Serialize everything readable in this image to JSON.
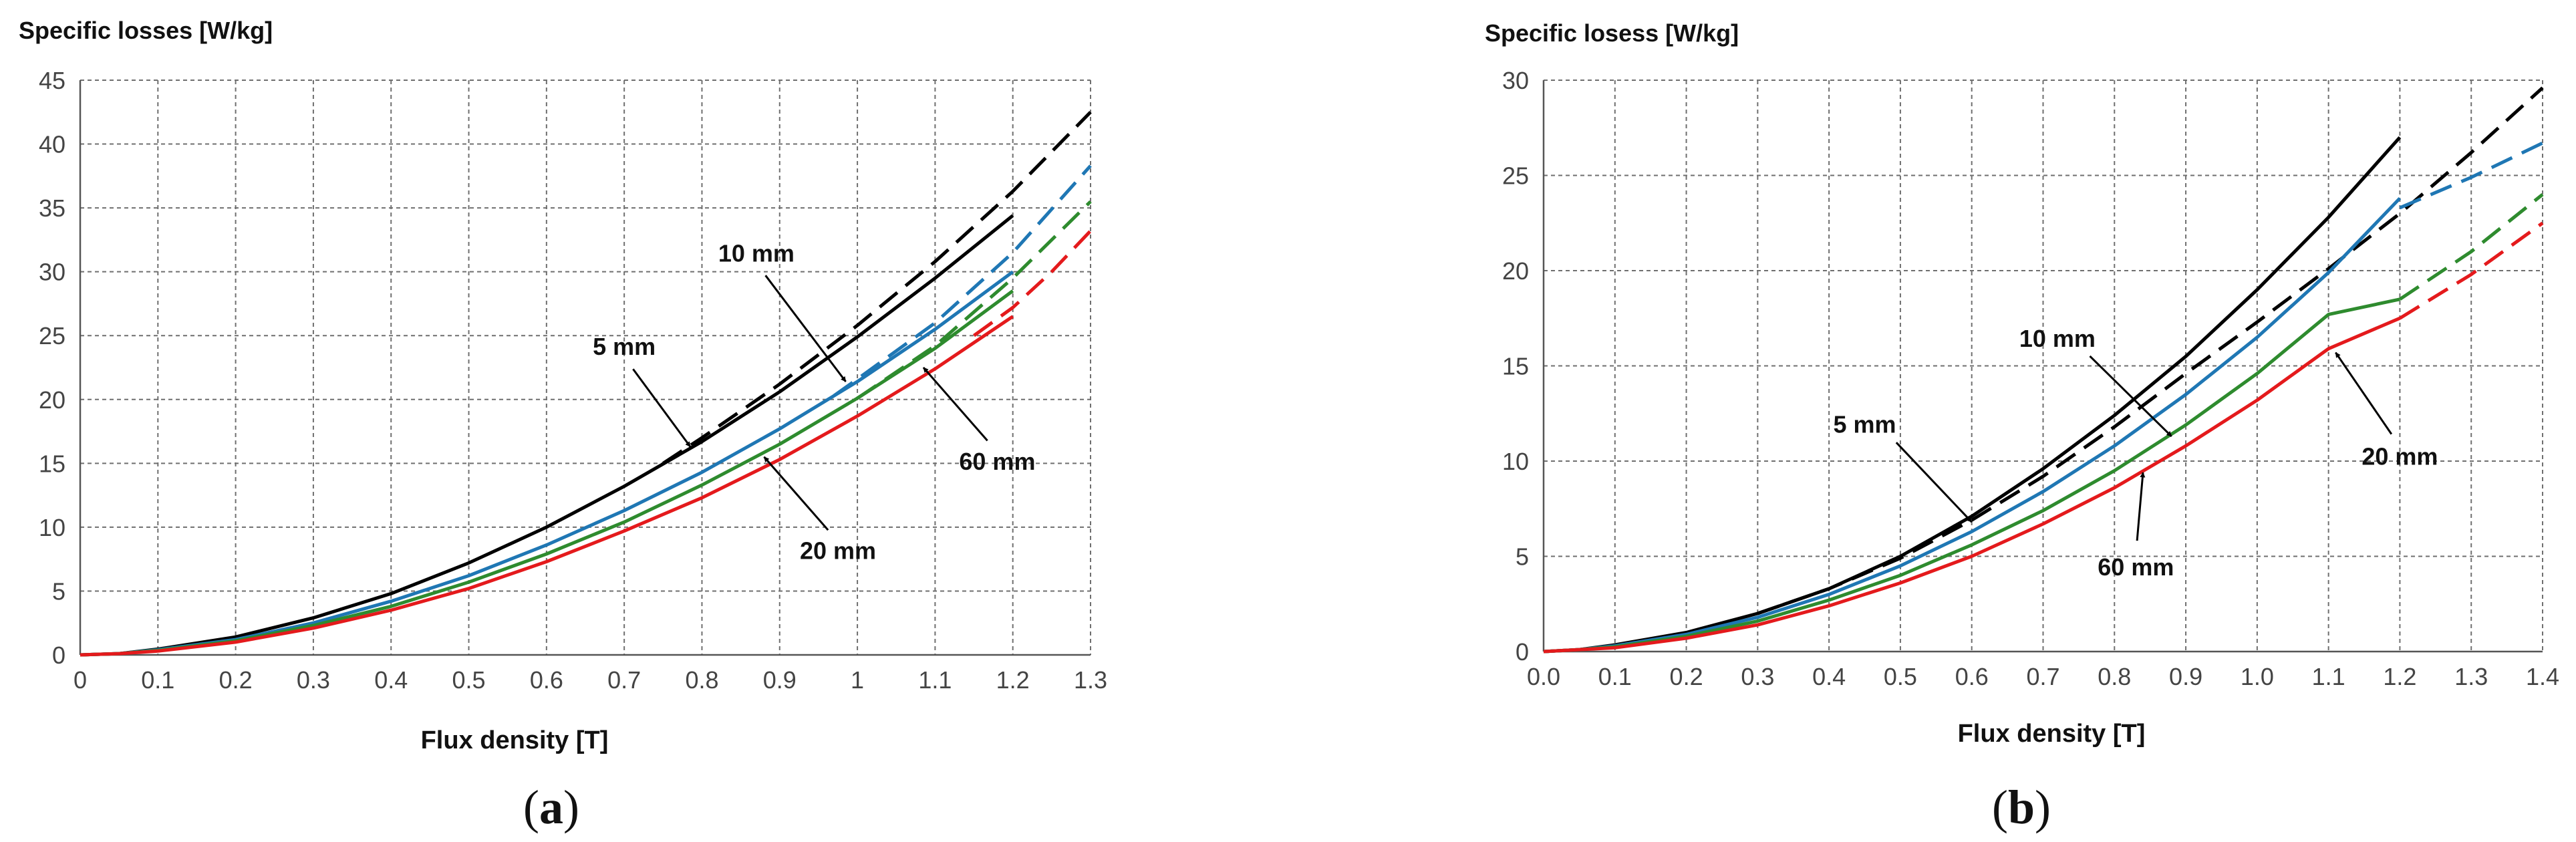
{
  "chart_data": [
    {
      "type": "line",
      "title": "",
      "ylabel": "Specific losses [W/kg]",
      "xlabel": "Flux density  [T]",
      "caption": "(a)",
      "caption_letter": "a",
      "xlim": [
        0,
        1.3
      ],
      "ylim": [
        0,
        45
      ],
      "xticks": [
        0,
        0.1,
        0.2,
        0.3,
        0.4,
        0.5,
        0.6,
        0.7,
        0.8,
        0.9,
        1,
        1.1,
        1.2,
        1.3
      ],
      "xtick_labels": [
        "0",
        "0.1",
        "0.2",
        "0.3",
        "0.4",
        "0.5",
        "0.6",
        "0.7",
        "0.8",
        "0.9",
        "1",
        "1.1",
        "1.2",
        "1.3"
      ],
      "yticks": [
        0,
        5,
        10,
        15,
        20,
        25,
        30,
        35,
        40,
        45
      ],
      "ytick_labels": [
        "0",
        "5",
        "10",
        "15",
        "20",
        "25",
        "30",
        "35",
        "40",
        "45"
      ],
      "grid": true,
      "colors": {
        "5 mm": "#000000",
        "10 mm": "#1f77b4",
        "20 mm": "#2e8b2e",
        "60 mm": "#e41a1c"
      },
      "series": [
        {
          "color": "#000000",
          "style": "solid",
          "x": [
            0,
            0.05,
            0.1,
            0.2,
            0.3,
            0.4,
            0.5,
            0.6,
            0.7,
            0.8,
            0.9,
            1.0,
            1.1,
            1.2
          ],
          "y": [
            0,
            0.1,
            0.45,
            1.4,
            2.9,
            4.8,
            7.2,
            10.0,
            13.2,
            16.7,
            20.6,
            24.9,
            29.5,
            34.4
          ]
        },
        {
          "color": "#000000",
          "style": "dashed",
          "x": [
            0.75,
            0.8,
            0.9,
            1.0,
            1.1,
            1.2,
            1.3
          ],
          "y": [
            15.0,
            17.0,
            21.2,
            25.8,
            30.8,
            36.3,
            42.5
          ]
        },
        {
          "color": "#1f77b4",
          "style": "solid",
          "x": [
            0,
            0.05,
            0.1,
            0.2,
            0.3,
            0.4,
            0.5,
            0.6,
            0.7,
            0.8,
            0.9,
            1.0,
            1.1,
            1.2
          ],
          "y": [
            0,
            0.1,
            0.4,
            1.2,
            2.5,
            4.2,
            6.2,
            8.6,
            11.3,
            14.3,
            17.7,
            21.4,
            25.5,
            30.0
          ]
        },
        {
          "color": "#1f77b4",
          "style": "dashed",
          "x": [
            0.97,
            1.0,
            1.1,
            1.2,
            1.3
          ],
          "y": [
            20.3,
            21.6,
            26.0,
            31.5,
            38.3
          ]
        },
        {
          "color": "#2e8b2e",
          "style": "solid",
          "x": [
            0,
            0.05,
            0.1,
            0.2,
            0.3,
            0.4,
            0.5,
            0.6,
            0.7,
            0.8,
            0.9,
            1.0,
            1.1,
            1.2
          ],
          "y": [
            0,
            0.1,
            0.35,
            1.1,
            2.3,
            3.8,
            5.7,
            7.9,
            10.4,
            13.3,
            16.5,
            20.1,
            24.0,
            28.5
          ]
        },
        {
          "color": "#2e8b2e",
          "style": "dashed",
          "x": [
            1.0,
            1.1,
            1.2,
            1.3
          ],
          "y": [
            20.1,
            24.2,
            29.5,
            35.5
          ]
        },
        {
          "color": "#e41a1c",
          "style": "solid",
          "x": [
            0,
            0.05,
            0.1,
            0.2,
            0.3,
            0.4,
            0.5,
            0.6,
            0.7,
            0.8,
            0.9,
            1.0,
            1.1,
            1.2
          ],
          "y": [
            0,
            0.1,
            0.3,
            1.0,
            2.1,
            3.5,
            5.2,
            7.3,
            9.7,
            12.3,
            15.3,
            18.7,
            22.4,
            26.5
          ]
        },
        {
          "color": "#e41a1c",
          "style": "dashed",
          "x": [
            1.15,
            1.2,
            1.25,
            1.3
          ],
          "y": [
            25.0,
            27.2,
            30.0,
            33.2
          ]
        }
      ],
      "annotations": [
        {
          "text": "5 mm",
          "text_x": 0.7,
          "text_y": 23.5,
          "arrow_x": 0.785,
          "arrow_y": 16.3
        },
        {
          "text": "10 mm",
          "text_x": 0.87,
          "text_y": 30.8,
          "arrow_x": 0.985,
          "arrow_y": 21.4
        },
        {
          "text": "60 mm",
          "text_x": 1.18,
          "text_y": 14.5,
          "arrow_x": 1.085,
          "arrow_y": 22.5
        },
        {
          "text": "20 mm",
          "text_x": 0.975,
          "text_y": 7.5,
          "arrow_x": 0.88,
          "arrow_y": 15.5
        }
      ]
    },
    {
      "type": "line",
      "title": "",
      "ylabel": "Specific losess [W/kg]",
      "xlabel": "Flux density [T]",
      "caption": "(b)",
      "caption_letter": "b",
      "xlim": [
        0,
        1.4
      ],
      "ylim": [
        0,
        30
      ],
      "xticks": [
        0,
        0.1,
        0.2,
        0.3,
        0.4,
        0.5,
        0.6,
        0.7,
        0.8,
        0.9,
        1.0,
        1.1,
        1.2,
        1.3,
        1.4
      ],
      "xtick_labels": [
        "0.0",
        "0.1",
        "0.2",
        "0.3",
        "0.4",
        "0.5",
        "0.6",
        "0.7",
        "0.8",
        "0.9",
        "1.0",
        "1.1",
        "1.2",
        "1.3",
        "1.4"
      ],
      "yticks": [
        0,
        5,
        10,
        15,
        20,
        25,
        30
      ],
      "ytick_labels": [
        "0",
        "5",
        "10",
        "15",
        "20",
        "25",
        "30"
      ],
      "grid": true,
      "colors": {
        "5 mm": "#000000",
        "10 mm": "#1f77b4",
        "20 mm": "#2e8b2e",
        "60 mm": "#e41a1c"
      },
      "series": [
        {
          "color": "#000000",
          "style": "solid",
          "x": [
            0,
            0.05,
            0.1,
            0.2,
            0.3,
            0.4,
            0.5,
            0.6,
            0.7,
            0.8,
            0.9,
            1.0,
            1.1,
            1.2
          ],
          "y": [
            0,
            0.1,
            0.35,
            1.0,
            2.0,
            3.3,
            5.0,
            7.1,
            9.6,
            12.4,
            15.5,
            19.0,
            22.8,
            27.0
          ]
        },
        {
          "color": "#000000",
          "style": "dashed",
          "x": [
            0.3,
            0.4,
            0.5,
            0.6,
            0.7,
            0.8,
            0.9,
            1.0,
            1.1,
            1.2,
            1.3,
            1.4
          ],
          "y": [
            2.0,
            3.3,
            4.9,
            6.9,
            9.2,
            11.8,
            14.6,
            17.3,
            20.1,
            23.0,
            26.2,
            29.6
          ]
        },
        {
          "color": "#1f77b4",
          "style": "solid",
          "x": [
            0,
            0.05,
            0.1,
            0.2,
            0.3,
            0.4,
            0.5,
            0.6,
            0.7,
            0.8,
            0.9,
            1.0,
            1.1,
            1.2
          ],
          "y": [
            0,
            0.1,
            0.3,
            0.9,
            1.8,
            3.0,
            4.5,
            6.3,
            8.4,
            10.8,
            13.5,
            16.5,
            19.9,
            23.8
          ]
        },
        {
          "color": "#1f77b4",
          "style": "dashed",
          "x": [
            1.2,
            1.3,
            1.4
          ],
          "y": [
            23.3,
            24.9,
            26.7
          ]
        },
        {
          "color": "#2e8b2e",
          "style": "solid",
          "x": [
            0,
            0.05,
            0.1,
            0.2,
            0.3,
            0.4,
            0.5,
            0.6,
            0.7,
            0.8,
            0.9,
            1.0,
            1.1,
            1.2
          ],
          "y": [
            0,
            0.1,
            0.25,
            0.8,
            1.6,
            2.7,
            4.0,
            5.6,
            7.4,
            9.5,
            11.9,
            14.6,
            17.7,
            18.5
          ]
        },
        {
          "color": "#2e8b2e",
          "style": "dashed",
          "x": [
            1.2,
            1.3,
            1.4
          ],
          "y": [
            18.5,
            21.0,
            24.0
          ]
        },
        {
          "color": "#e41a1c",
          "style": "solid",
          "x": [
            0,
            0.05,
            0.1,
            0.2,
            0.3,
            0.4,
            0.5,
            0.6,
            0.7,
            0.8,
            0.9,
            1.0,
            1.1,
            1.2
          ],
          "y": [
            0,
            0.1,
            0.2,
            0.7,
            1.4,
            2.4,
            3.6,
            5.0,
            6.7,
            8.6,
            10.8,
            13.2,
            15.9,
            17.5
          ]
        },
        {
          "color": "#e41a1c",
          "style": "dashed",
          "x": [
            1.2,
            1.3,
            1.4
          ],
          "y": [
            17.5,
            19.8,
            22.5
          ]
        }
      ],
      "annotations": [
        {
          "text": "5 mm",
          "text_x": 0.45,
          "text_y": 11.5,
          "arrow_x": 0.6,
          "arrow_y": 6.8
        },
        {
          "text": "10 mm",
          "text_x": 0.72,
          "text_y": 16.0,
          "arrow_x": 0.88,
          "arrow_y": 11.3
        },
        {
          "text": "20 mm",
          "text_x": 1.2,
          "text_y": 9.8,
          "arrow_x": 1.11,
          "arrow_y": 15.7
        },
        {
          "text": "60 mm",
          "text_x": 0.83,
          "text_y": 4.0,
          "arrow_x": 0.84,
          "arrow_y": 9.4
        }
      ]
    }
  ]
}
